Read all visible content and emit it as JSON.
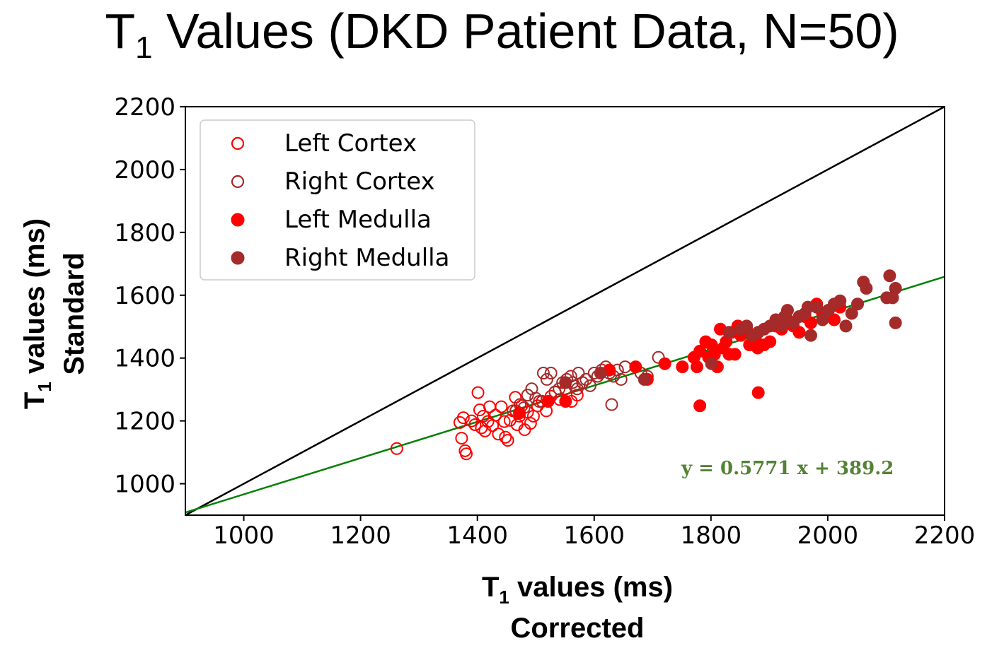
{
  "title": {
    "prefix": "T",
    "sub": "1",
    "rest": " Values (DKD Patient Data, N=50)"
  },
  "chart_data": {
    "type": "scatter",
    "xlabel": {
      "prefix": "T",
      "sub": "1",
      "rest": " values (ms)",
      "line2": "Corrected"
    },
    "ylabel": {
      "prefix": "T",
      "sub": "1",
      "rest": " values (ms)",
      "line2": "Standard"
    },
    "xlim": [
      900,
      2200
    ],
    "ylim": [
      900,
      2200
    ],
    "xticks": [
      1000,
      1200,
      1400,
      1600,
      1800,
      2000,
      2200
    ],
    "yticks": [
      1000,
      1200,
      1400,
      1600,
      1800,
      2000,
      2200
    ],
    "grid": false,
    "legend_position": "top-left",
    "identity_line": {
      "color": "#000000",
      "from": [
        900,
        900
      ],
      "to": [
        2200,
        2200
      ]
    },
    "fit_line": {
      "slope": 0.5771,
      "intercept": 389.2,
      "color": "#008000",
      "label": "y = 0.5771 x + 389.2"
    },
    "series": [
      {
        "name": "Left Cortex",
        "color": "#ff0000",
        "filled": false,
        "x": [
          1262,
          1370,
          1373,
          1376,
          1379,
          1381,
          1390,
          1396,
          1401,
          1404,
          1407,
          1410,
          1413,
          1418,
          1421,
          1426,
          1431,
          1436,
          1441,
          1446,
          1448,
          1452,
          1456,
          1461,
          1465,
          1468,
          1472,
          1476,
          1481,
          1486,
          1491,
          1496,
          1503,
          1511,
          1518,
          1526,
          1533,
          1541,
          1551,
          1561,
          1571
        ],
        "y": [
          1112,
          1195,
          1145,
          1210,
          1105,
          1095,
          1200,
          1188,
          1290,
          1235,
          1178,
          1215,
          1168,
          1198,
          1245,
          1185,
          1218,
          1158,
          1245,
          1198,
          1148,
          1138,
          1202,
          1232,
          1275,
          1188,
          1215,
          1248,
          1172,
          1228,
          1192,
          1215,
          1248,
          1262,
          1232,
          1278,
          1292,
          1268,
          1302,
          1262,
          1282
        ]
      },
      {
        "name": "Right Cortex",
        "color": "#a52a2a",
        "filled": false,
        "x": [
          1466,
          1473,
          1480,
          1486,
          1493,
          1500,
          1506,
          1513,
          1519,
          1526,
          1533,
          1540,
          1546,
          1553,
          1560,
          1566,
          1573,
          1580,
          1586,
          1593,
          1600,
          1606,
          1613,
          1620,
          1626,
          1633,
          1640,
          1646,
          1653,
          1680,
          1691,
          1710,
          1630,
          1571,
          1563
        ],
        "y": [
          1232,
          1252,
          1242,
          1282,
          1302,
          1272,
          1262,
          1352,
          1332,
          1352,
          1292,
          1302,
          1322,
          1332,
          1342,
          1312,
          1352,
          1322,
          1332,
          1312,
          1352,
          1342,
          1362,
          1372,
          1352,
          1342,
          1362,
          1332,
          1372,
          1352,
          1342,
          1402,
          1252,
          1302,
          1322
        ]
      },
      {
        "name": "Left Medulla",
        "color": "#ff0000",
        "filled": true,
        "x": [
          1472,
          1521,
          1551,
          1626,
          1671,
          1691,
          1721,
          1751,
          1771,
          1776,
          1781,
          1791,
          1796,
          1801,
          1806,
          1811,
          1816,
          1821,
          1826,
          1831,
          1836,
          1841,
          1846,
          1851,
          1861,
          1866,
          1876,
          1880,
          1891,
          1901,
          1911,
          1921,
          1931,
          1941,
          1951,
          1961,
          1971,
          1981,
          1991,
          2001,
          2011,
          2021,
          1881,
          1781
        ],
        "y": [
          1225,
          1262,
          1262,
          1362,
          1372,
          1332,
          1382,
          1372,
          1402,
          1372,
          1422,
          1452,
          1402,
          1442,
          1412,
          1372,
          1492,
          1432,
          1452,
          1412,
          1482,
          1412,
          1502,
          1472,
          1492,
          1442,
          1462,
          1432,
          1442,
          1452,
          1502,
          1492,
          1522,
          1502,
          1482,
          1532,
          1512,
          1572,
          1542,
          1552,
          1522,
          1562,
          1290,
          1248
        ]
      },
      {
        "name": "Right Medulla",
        "color": "#a52a2a",
        "filled": true,
        "x": [
          1551,
          1611,
          1686,
          1801,
          1831,
          1851,
          1861,
          1871,
          1881,
          1891,
          1901,
          1911,
          1921,
          1931,
          1941,
          1951,
          1961,
          1971,
          1981,
          1991,
          2001,
          2011,
          2021,
          2031,
          2041,
          2051,
          2061,
          2066,
          2101,
          2106,
          2111,
          2116,
          2116,
          1926,
          1966
        ],
        "y": [
          1322,
          1352,
          1332,
          1382,
          1482,
          1492,
          1502,
          1472,
          1482,
          1492,
          1502,
          1522,
          1502,
          1552,
          1512,
          1532,
          1542,
          1472,
          1562,
          1522,
          1552,
          1572,
          1582,
          1502,
          1542,
          1572,
          1642,
          1622,
          1592,
          1662,
          1592,
          1622,
          1512,
          1532,
          1562
        ]
      }
    ]
  }
}
